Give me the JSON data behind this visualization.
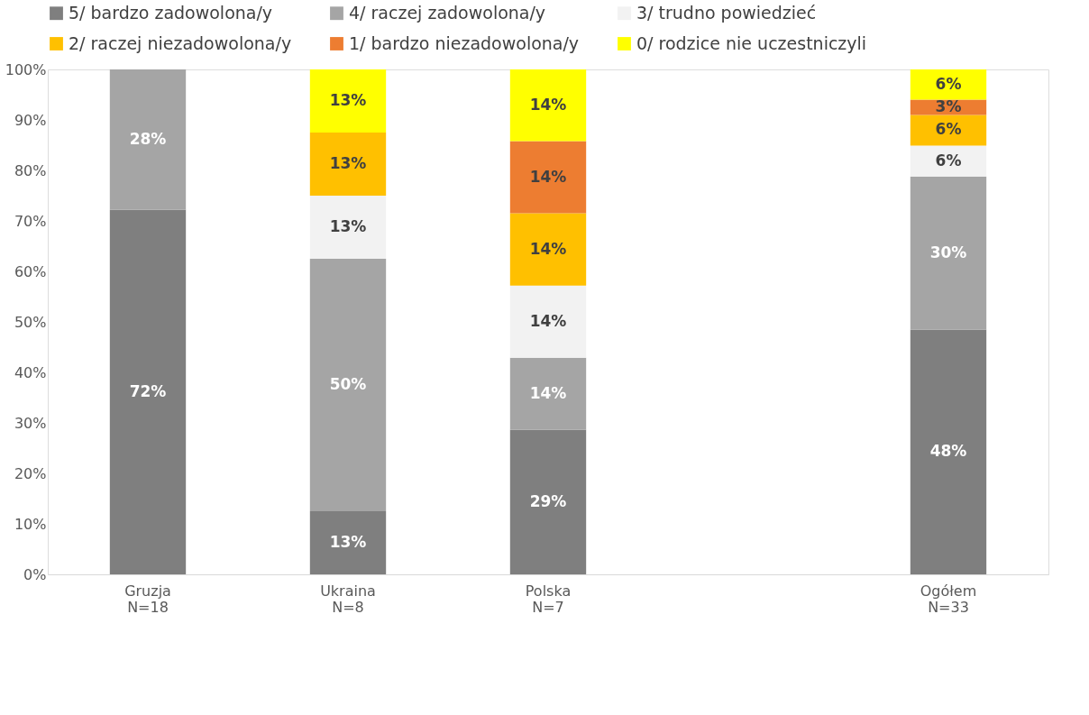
{
  "chart_data": {
    "type": "bar",
    "stacked": true,
    "categories": [
      "Gruzja\nN=18",
      "Ukraina\nN=8",
      "Polska\nN=7",
      null,
      "Ogółem\nN=33"
    ],
    "series": [
      {
        "name": "5/ bardzo zadowolona/y",
        "color": "#7f7f7f",
        "values": [
          72.2,
          12.5,
          28.6,
          null,
          48.5
        ],
        "value_labels": [
          "72%",
          "13%",
          "29%",
          null,
          "48%"
        ]
      },
      {
        "name": "4/ raczej zadowolona/y",
        "color": "#a5a5a5",
        "values": [
          27.8,
          50,
          14.3,
          null,
          30.3
        ],
        "value_labels": [
          "28%",
          "50%",
          "14%",
          null,
          "30%"
        ]
      },
      {
        "name": "3/ trudno powiedzieć",
        "color": "#f2f2f2",
        "values": [
          0,
          12.5,
          14.3,
          null,
          6.1
        ],
        "value_labels": [
          null,
          "13%",
          "14%",
          null,
          "6%"
        ]
      },
      {
        "name": "2/ raczej niezadowolona/y",
        "color": "#ffc000",
        "values": [
          0,
          12.5,
          14.3,
          null,
          6.1
        ],
        "value_labels": [
          null,
          "13%",
          "14%",
          null,
          "6%"
        ]
      },
      {
        "name": "1/ bardzo niezadowolona/y",
        "color": "#ed7d31",
        "values": [
          0,
          0,
          14.3,
          null,
          3.0
        ],
        "value_labels": [
          null,
          null,
          "14%",
          null,
          "3%"
        ]
      },
      {
        "name": "0/ rodzice nie uczestniczyli",
        "color": "#ffff00",
        "values": [
          0,
          12.5,
          14.2,
          null,
          6.0
        ],
        "value_labels": [
          null,
          "13%",
          "14%",
          null,
          "6%"
        ]
      }
    ],
    "ylim": [
      0,
      100
    ],
    "yticks": [
      {
        "value": 0,
        "label": "0%"
      },
      {
        "value": 10,
        "label": "10%"
      },
      {
        "value": 20,
        "label": "20%"
      },
      {
        "value": 30,
        "label": "30%"
      },
      {
        "value": 40,
        "label": "40%"
      },
      {
        "value": 50,
        "label": "50%"
      },
      {
        "value": 60,
        "label": "60%"
      },
      {
        "value": 70,
        "label": "70%"
      },
      {
        "value": 80,
        "label": "80%"
      },
      {
        "value": 90,
        "label": "90%"
      },
      {
        "value": 100,
        "label": "100%"
      }
    ],
    "grid": false,
    "legend": "top"
  }
}
